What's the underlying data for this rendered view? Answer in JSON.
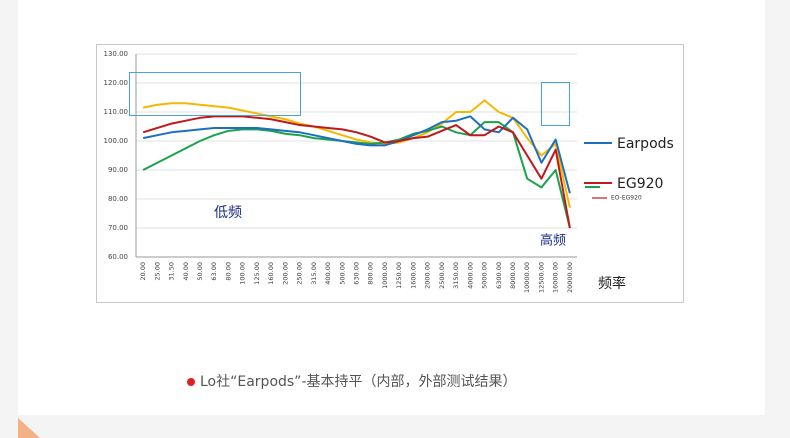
{
  "chart_data": {
    "type": "line",
    "categories": [
      "20.00",
      "25.00",
      "31.50",
      "40.00",
      "50.00",
      "63.00",
      "80.00",
      "100.00",
      "125.00",
      "160.00",
      "200.00",
      "250.00",
      "315.00",
      "400.00",
      "500.00",
      "630.00",
      "800.00",
      "1000.00",
      "1250.00",
      "1600.00",
      "2000.00",
      "2500.00",
      "3150.00",
      "4000.00",
      "5000.00",
      "6300.00",
      "8000.00",
      "10000.00",
      "12500.00",
      "16000.00",
      "20000.00"
    ],
    "ylim": [
      60,
      130
    ],
    "yticks": [
      {
        "value": 60,
        "label": "60.00"
      },
      {
        "value": 70,
        "label": "70.00"
      },
      {
        "value": 80,
        "label": "80.00"
      },
      {
        "value": 90,
        "label": "90.00"
      },
      {
        "value": 100,
        "label": "100.00"
      },
      {
        "value": 110,
        "label": "110.00"
      },
      {
        "value": 120,
        "label": "120.00"
      },
      {
        "value": 130,
        "label": "130.00"
      }
    ],
    "grid": true,
    "series": [
      {
        "color": "#f5b800",
        "values": [
          111.5,
          112.5,
          113,
          113,
          112.5,
          112,
          111.5,
          110.5,
          109.5,
          108.5,
          107.5,
          106,
          105,
          103.5,
          102,
          100.5,
          99.5,
          99,
          99.5,
          101,
          103,
          106,
          110,
          110,
          114,
          110,
          108,
          101,
          95,
          99,
          77
        ]
      },
      {
        "color": "#1aa34a",
        "values": [
          90,
          92.5,
          95,
          97.5,
          100,
          102,
          103.5,
          104,
          104,
          103.5,
          102.5,
          102,
          101,
          100.5,
          100,
          99.5,
          99,
          99.5,
          100.5,
          102.5,
          103.5,
          105,
          103,
          102,
          106.5,
          106.5,
          103,
          87,
          84,
          90,
          70
        ]
      },
      {
        "name": "Earpods",
        "color": "#1f6fc0",
        "values": [
          101,
          102,
          103,
          103.5,
          104,
          104.5,
          104.5,
          104.5,
          104.5,
          104,
          103.5,
          103,
          102,
          101,
          100,
          99,
          98.5,
          98.5,
          100,
          102,
          104,
          106.5,
          107,
          108.5,
          104,
          103,
          108,
          104,
          92.5,
          100.5,
          82
        ]
      },
      {
        "name": "EG920",
        "color": "#c0181b",
        "values": [
          103,
          104.5,
          106,
          107,
          108,
          108.5,
          108.5,
          108.5,
          108,
          107.5,
          106.5,
          105.5,
          105,
          104.5,
          104,
          103,
          101.5,
          99.5,
          100,
          101,
          101.5,
          103.5,
          105.5,
          102,
          102,
          105,
          103,
          95,
          87,
          97,
          70
        ]
      }
    ],
    "annotations": [
      "低频",
      "高频",
      "频率",
      "EO-EG920"
    ],
    "caption": "Lo社“Earpods”-基本持平（内部，外部测试结果）"
  }
}
